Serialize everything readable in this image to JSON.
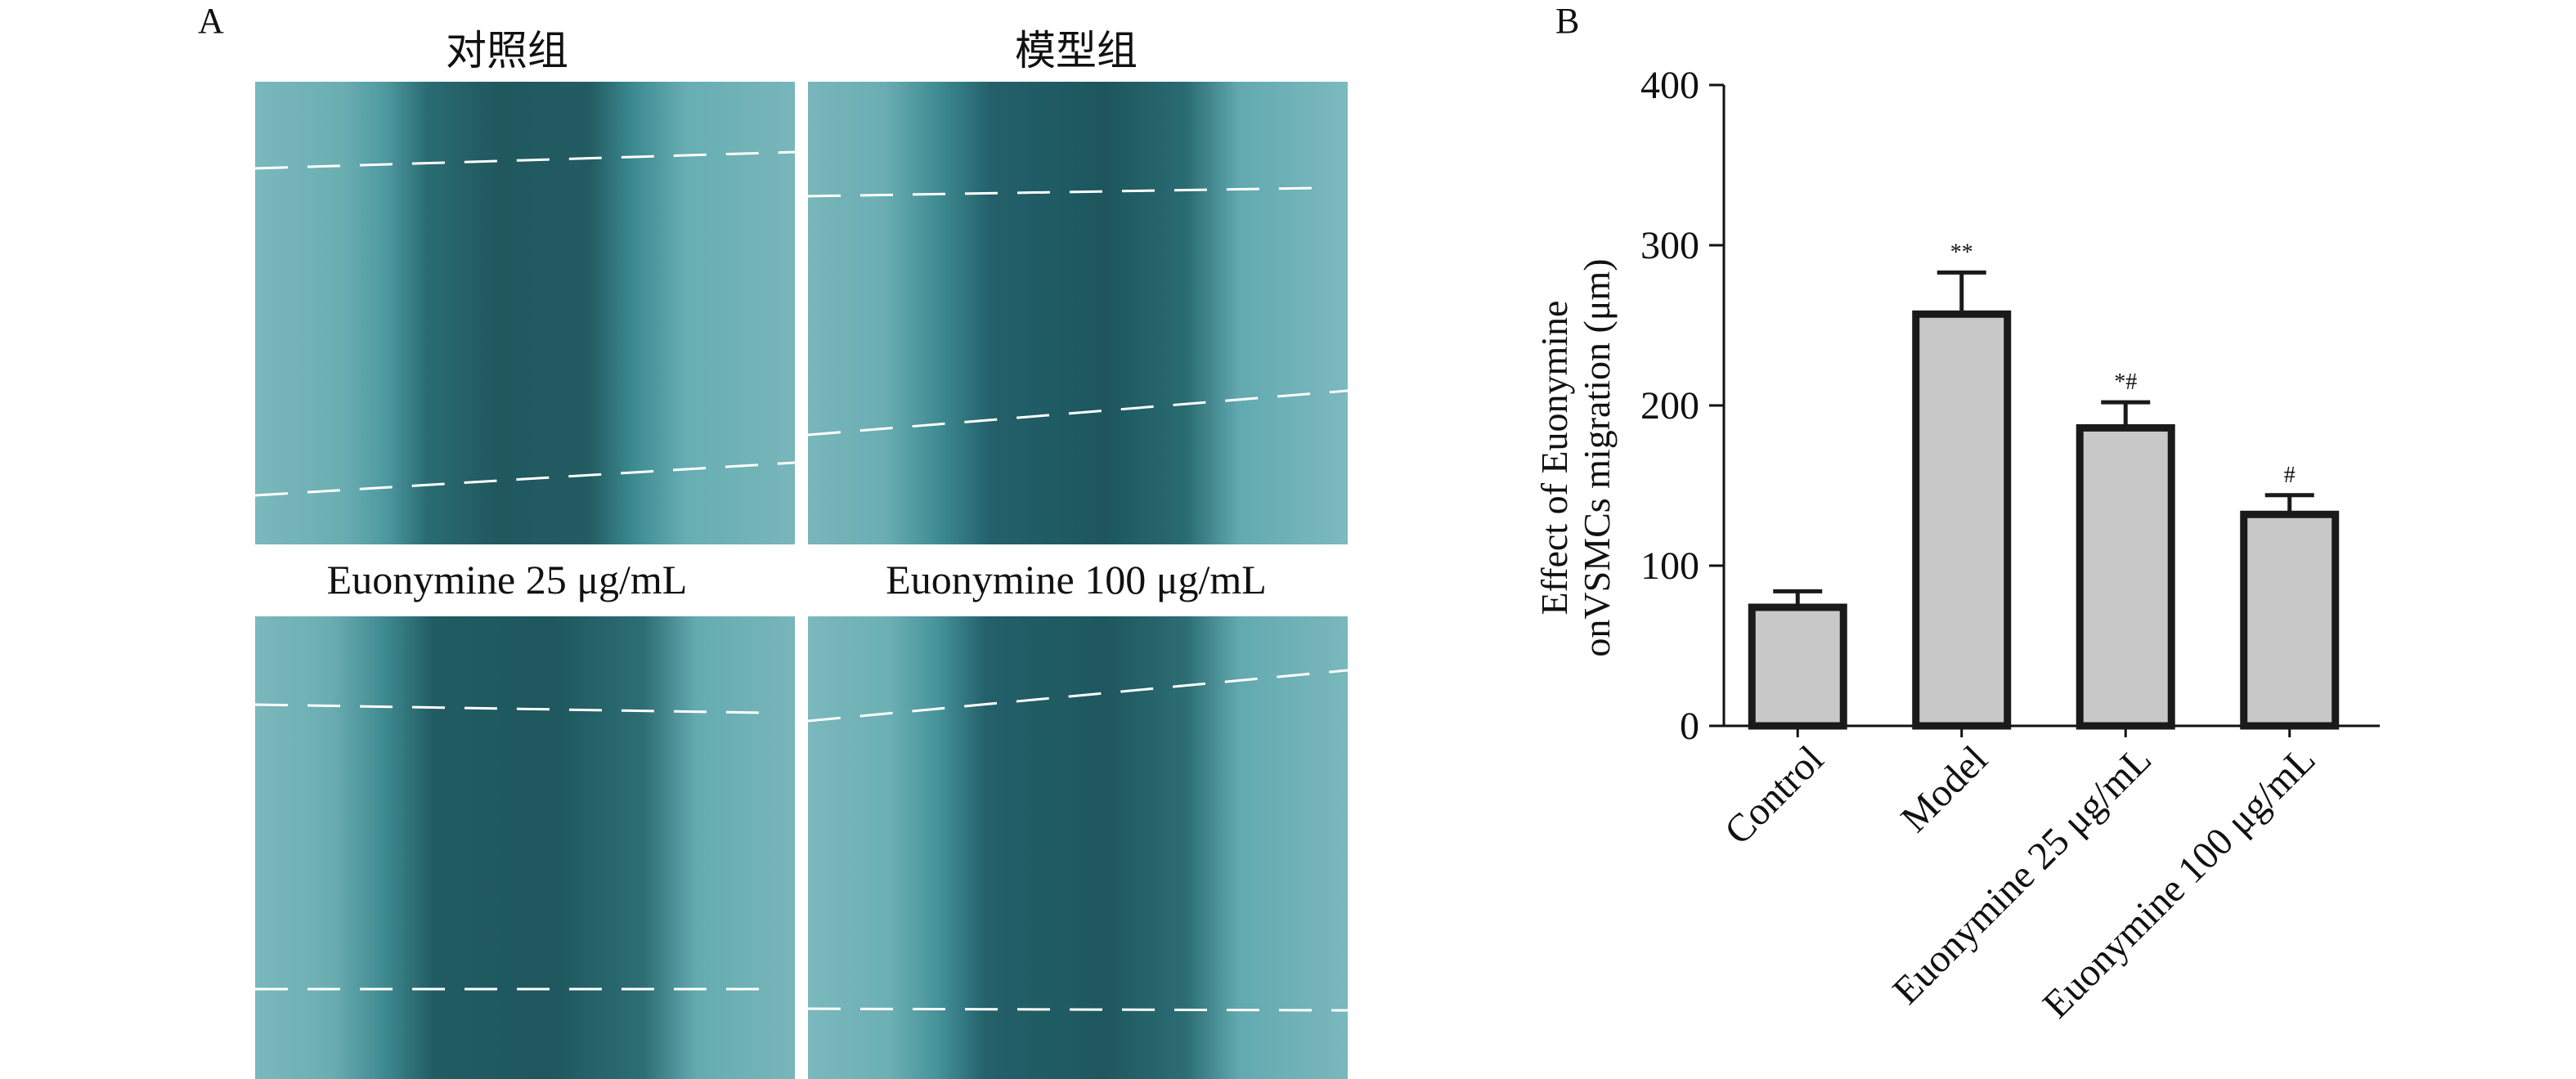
{
  "panel_a": {
    "letter": "A",
    "images": [
      {
        "title": "对照组"
      },
      {
        "title": "模型组"
      },
      {
        "title": "Euonymine 25 μg/mL"
      },
      {
        "title": "Euonymine 100 μg/mL"
      }
    ],
    "colors": {
      "bright": "#74b4b8",
      "mid": "#3e878c",
      "dark": "#1f5b61",
      "line": "#ffffff"
    }
  },
  "panel_b": {
    "letter": "B"
  },
  "chart_data": {
    "type": "bar",
    "categories": [
      "Control",
      "Model",
      "Euonymine 25 μg/mL",
      "Euonymine 100 μg/mL"
    ],
    "values": [
      74,
      257,
      186,
      132
    ],
    "errors": [
      10,
      26,
      16,
      12
    ],
    "annotations": [
      "",
      "**",
      "*#",
      "#"
    ],
    "ylabel_line1": "Effect of Euonymine",
    "ylabel_line2": "onVSMCs migration (μm)",
    "ylim": [
      0,
      400
    ],
    "yticks": [
      0,
      100,
      200,
      300,
      400
    ],
    "bar_color": "#c8c8c8",
    "edge_color": "#1a1a1a"
  }
}
